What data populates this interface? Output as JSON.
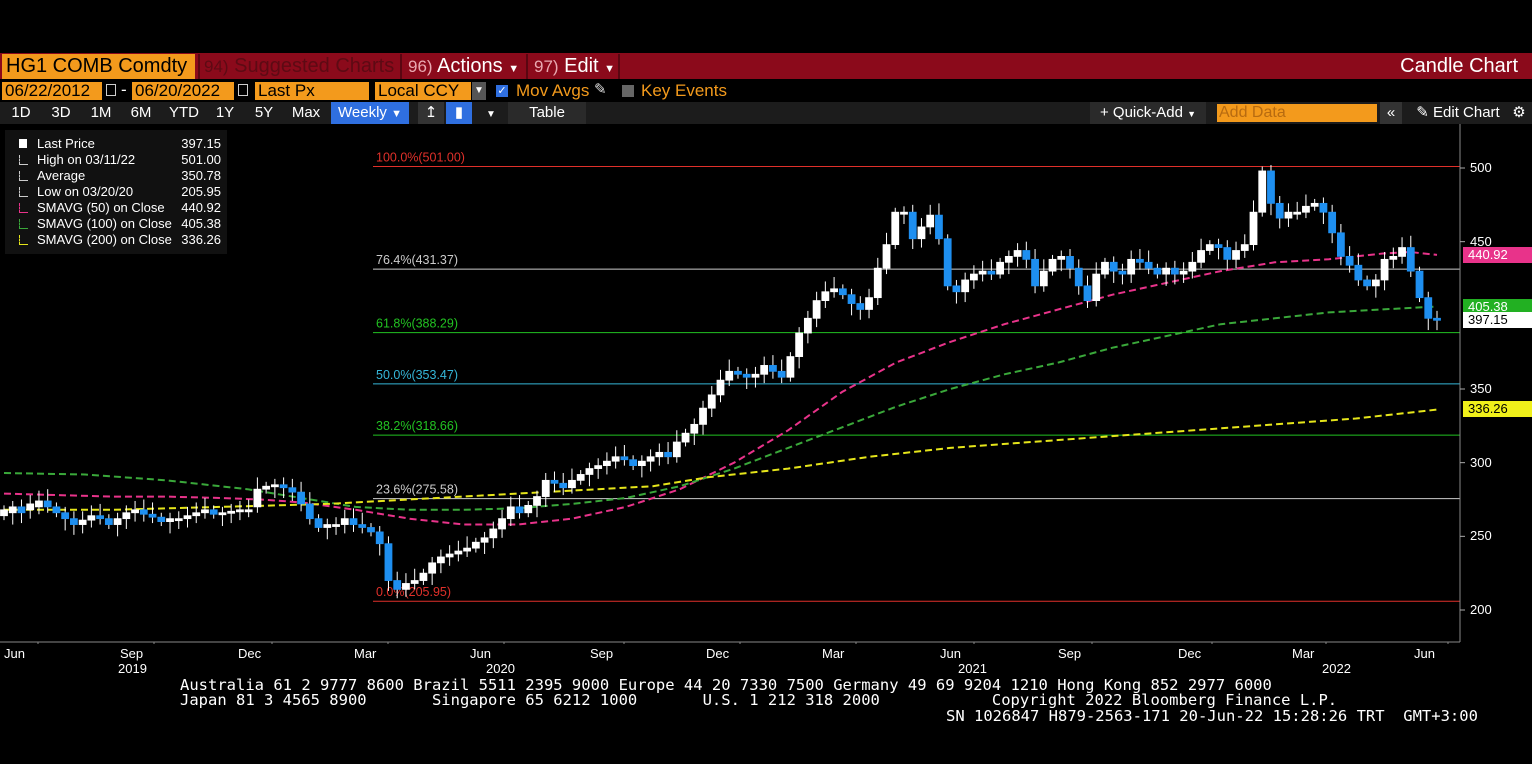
{
  "toolbar": {
    "ticker": "HG1 COMB Comdty",
    "suggested_num": "94)",
    "suggested_label": "Suggested Charts",
    "actions_num": "96)",
    "actions_label": "Actions",
    "edit_num": "97)",
    "edit_label": "Edit",
    "chart_type": "Candle Chart"
  },
  "settings": {
    "start_date": "06/22/2012",
    "dash": "-",
    "end_date": "06/20/2022",
    "price_field": "Last Px",
    "currency": "Local CCY",
    "mov_avgs": "Mov Avgs",
    "mov_avgs_checked": true,
    "key_events": "Key Events",
    "key_events_checked": false
  },
  "periods": [
    "1D",
    "3D",
    "1M",
    "6M",
    "YTD",
    "1Y",
    "5Y",
    "Max"
  ],
  "frequency": "Weekly",
  "table_label": "Table",
  "quick_add": "+ Quick-Add",
  "add_data_placeholder": "Add Data",
  "edit_chart": "Edit Chart",
  "legend": [
    {
      "label": "Last Price",
      "value": "397.15",
      "color": "#ffffff"
    },
    {
      "label": "High on 03/11/22",
      "value": "501.00",
      "color": "#cccccc"
    },
    {
      "label": "Average",
      "value": "350.78",
      "color": "#cccccc"
    },
    {
      "label": "Low on 03/20/20",
      "value": "205.95",
      "color": "#cccccc"
    },
    {
      "label": "SMAVG (50)  on Close",
      "value": "440.92",
      "color": "#e8338a"
    },
    {
      "label": "SMAVG (100)  on Close",
      "value": "405.38",
      "color": "#3aa83a"
    },
    {
      "label": "SMAVG (200)  on Close",
      "value": "336.26",
      "color": "#e5e51a"
    }
  ],
  "fib_levels": [
    {
      "label": "100.0%(501.00)",
      "value": 501.0,
      "color": "#e0302a"
    },
    {
      "label": "76.4%(431.37)",
      "value": 431.37,
      "color": "#cccccc"
    },
    {
      "label": "61.8%(388.29)",
      "value": 388.29,
      "color": "#22c222"
    },
    {
      "label": "50.0%(353.47)",
      "value": 353.47,
      "color": "#35b6d8"
    },
    {
      "label": "38.2%(318.66)",
      "value": 318.66,
      "color": "#22c222"
    },
    {
      "label": "23.6%(275.58)",
      "value": 275.58,
      "color": "#cccccc"
    },
    {
      "label": "0.0%(205.95)",
      "value": 205.95,
      "color": "#e0302a"
    }
  ],
  "value_tags": [
    {
      "label": "440.92",
      "value": 440.92,
      "bg": "#e8338a",
      "fg": "#ffffff"
    },
    {
      "label": "405.38",
      "value": 405.38,
      "bg": "#22b022",
      "fg": "#ffffff"
    },
    {
      "label": "397.15",
      "value": 397.15,
      "bg": "#ffffff",
      "fg": "#000000"
    },
    {
      "label": "336.26",
      "value": 336.26,
      "bg": "#f0f01a",
      "fg": "#000000"
    }
  ],
  "chart_data": {
    "type": "candlestick",
    "y_ticks": [
      200,
      250,
      300,
      350,
      450,
      500
    ],
    "ylim": [
      195,
      510
    ],
    "x_month_labels": [
      "Jun",
      "Sep",
      "Dec",
      "Mar",
      "Jun",
      "Sep",
      "Dec",
      "Mar",
      "Jun",
      "Sep",
      "Dec",
      "Mar",
      "Jun"
    ],
    "x_year_labels": [
      "2019",
      "2020",
      "2021",
      "2022"
    ],
    "candles_close": [
      268,
      270,
      266,
      272,
      274,
      270,
      266,
      262,
      258,
      261,
      264,
      262,
      258,
      262,
      266,
      268,
      265,
      263,
      260,
      262,
      262,
      264,
      266,
      268,
      265,
      266,
      267,
      268,
      268,
      282,
      284,
      285,
      283,
      280,
      272,
      262,
      256,
      258,
      258,
      262,
      258,
      256,
      253,
      245,
      220,
      214,
      218,
      220,
      225,
      232,
      236,
      238,
      240,
      242,
      246,
      249,
      255,
      262,
      270,
      266,
      271,
      277,
      288,
      286,
      283,
      288,
      292,
      296,
      298,
      301,
      304,
      302,
      298,
      301,
      304,
      307,
      304,
      314,
      320,
      326,
      337,
      346,
      356,
      362,
      360,
      358,
      360,
      366,
      362,
      358,
      372,
      388,
      398,
      410,
      416,
      418,
      414,
      408,
      404,
      412,
      432,
      448,
      470,
      470,
      452,
      460,
      468,
      452,
      420,
      416,
      424,
      428,
      430,
      428,
      436,
      440,
      444,
      438,
      420,
      430,
      438,
      440,
      432,
      420,
      410,
      428,
      436,
      430,
      428,
      438,
      436,
      432,
      428,
      432,
      428,
      430,
      436,
      444,
      448,
      446,
      438,
      444,
      448,
      470,
      498,
      476,
      466,
      470,
      470,
      474,
      476,
      470,
      456,
      440,
      434,
      424,
      420,
      424,
      438,
      440,
      446,
      430,
      412,
      398,
      397
    ],
    "candles_open": [
      264,
      266,
      270,
      268,
      270,
      274,
      270,
      266,
      262,
      258,
      261,
      264,
      262,
      258,
      262,
      266,
      268,
      265,
      263,
      260,
      262,
      262,
      264,
      266,
      268,
      265,
      266,
      267,
      268,
      270,
      282,
      284,
      285,
      283,
      280,
      272,
      262,
      256,
      258,
      258,
      262,
      258,
      256,
      253,
      245,
      220,
      214,
      218,
      220,
      225,
      232,
      236,
      238,
      240,
      242,
      246,
      249,
      255,
      262,
      270,
      266,
      271,
      277,
      288,
      286,
      283,
      288,
      292,
      296,
      298,
      301,
      304,
      302,
      298,
      301,
      304,
      307,
      304,
      314,
      320,
      326,
      337,
      346,
      356,
      362,
      360,
      358,
      360,
      366,
      362,
      358,
      372,
      388,
      398,
      410,
      416,
      418,
      414,
      408,
      404,
      412,
      432,
      448,
      470,
      470,
      452,
      460,
      468,
      452,
      420,
      416,
      424,
      428,
      430,
      428,
      436,
      440,
      444,
      438,
      420,
      430,
      438,
      440,
      432,
      420,
      410,
      428,
      436,
      430,
      428,
      438,
      436,
      432,
      428,
      432,
      428,
      430,
      436,
      444,
      448,
      446,
      438,
      444,
      448,
      470,
      498,
      476,
      466,
      470,
      470,
      474,
      476,
      470,
      456,
      440,
      434,
      424,
      420,
      424,
      438,
      440,
      446,
      430,
      412,
      398
    ],
    "series": [
      {
        "name": "SMAVG (50)",
        "color": "#e8338a",
        "values": [
          [
            0,
            279
          ],
          [
            20,
            278
          ],
          [
            40,
            277
          ],
          [
            60,
            277
          ],
          [
            80,
            276
          ],
          [
            95,
            275
          ],
          [
            110,
            273
          ],
          [
            130,
            268
          ],
          [
            150,
            262
          ],
          [
            170,
            258
          ],
          [
            190,
            258
          ],
          [
            210,
            262
          ],
          [
            230,
            270
          ],
          [
            250,
            282
          ],
          [
            270,
            300
          ],
          [
            290,
            322
          ],
          [
            310,
            348
          ],
          [
            330,
            368
          ],
          [
            350,
            382
          ],
          [
            370,
            394
          ],
          [
            390,
            404
          ],
          [
            410,
            414
          ],
          [
            430,
            422
          ],
          [
            450,
            430
          ],
          [
            470,
            436
          ],
          [
            490,
            438
          ],
          [
            510,
            442
          ],
          [
            520,
            443
          ],
          [
            530,
            441
          ]
        ]
      },
      {
        "name": "SMAVG (100)",
        "color": "#3aa83a",
        "values": [
          [
            0,
            293
          ],
          [
            30,
            292
          ],
          [
            60,
            288
          ],
          [
            90,
            282
          ],
          [
            110,
            276
          ],
          [
            130,
            270
          ],
          [
            150,
            268
          ],
          [
            170,
            268
          ],
          [
            190,
            269
          ],
          [
            210,
            272
          ],
          [
            230,
            276
          ],
          [
            250,
            284
          ],
          [
            270,
            296
          ],
          [
            290,
            310
          ],
          [
            310,
            324
          ],
          [
            330,
            338
          ],
          [
            350,
            350
          ],
          [
            370,
            360
          ],
          [
            390,
            368
          ],
          [
            410,
            378
          ],
          [
            430,
            386
          ],
          [
            450,
            394
          ],
          [
            470,
            398
          ],
          [
            490,
            402
          ],
          [
            510,
            404
          ],
          [
            530,
            406
          ]
        ]
      },
      {
        "name": "SMAVG (200)",
        "color": "#e5e51a",
        "values": [
          [
            0,
            268
          ],
          [
            40,
            268
          ],
          [
            80,
            270
          ],
          [
            120,
            272
          ],
          [
            160,
            276
          ],
          [
            200,
            280
          ],
          [
            240,
            284
          ],
          [
            260,
            290
          ],
          [
            290,
            296
          ],
          [
            320,
            304
          ],
          [
            350,
            310
          ],
          [
            380,
            314
          ],
          [
            410,
            318
          ],
          [
            440,
            322
          ],
          [
            470,
            326
          ],
          [
            500,
            330
          ],
          [
            530,
            336
          ]
        ]
      }
    ]
  },
  "footer": {
    "line1": "Australia 61 2 9777 8600 Brazil 5511 2395 9000 Europe 44 20 7330 7500 Germany 49 69 9204 1210 Hong Kong 852 2977 6000",
    "line2": "Japan 81 3 4565 8900       Singapore 65 6212 1000       U.S. 1 212 318 2000            Copyright 2022 Bloomberg Finance L.P.",
    "line3": "SN 1026847 H879-2563-171 20-Jun-22 15:28:26 TRT  GMT+3:00"
  }
}
